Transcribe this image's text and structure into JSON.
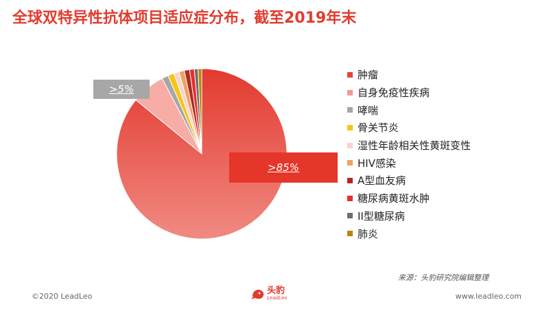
{
  "title": "全球双特异性抗体项目适应症分布，截至2019年末",
  "chart_data": {
    "type": "pie",
    "categories": [
      "肿瘤",
      "自身免疫性疾病",
      "哮喘",
      "骨关节炎",
      "湿性年龄相关性黄斑变性",
      "HIV感染",
      "A型血友病",
      "糖尿病黄斑水肿",
      "II型糖尿病",
      "肺炎"
    ],
    "values": [
      85.9,
      6.4,
      1.2,
      1.2,
      1.0,
      1.0,
      1.0,
      0.9,
      0.7,
      0.7
    ],
    "colors": [
      "#e8453a",
      "#f39a92",
      "#a6a6a6",
      "#f5c518",
      "#f8d3d0",
      "#f0a060",
      "#b02a22",
      "#e82d2d",
      "#6e6e6e",
      "#b8860b"
    ],
    "gradients": [
      [
        "#e33a2f",
        "#f08a82"
      ],
      [
        "#f7aca6",
        "#f7aca6"
      ],
      [
        "#a6a6a6",
        "#a6a6a6"
      ],
      [
        "#f5c518",
        "#f5c518"
      ],
      [
        "#f8d3d0",
        "#f8d3d0"
      ],
      [
        "#f0a060",
        "#f0a060"
      ],
      [
        "#b02a22",
        "#b02a22"
      ],
      [
        "#e82d2d",
        "#e82d2d"
      ],
      [
        "#6e6e6e",
        "#6e6e6e"
      ],
      [
        "#b8860b",
        "#b8860b"
      ]
    ],
    "annotations": [
      ">5%",
      ">85%"
    ],
    "legend_position": "right"
  },
  "source": "来源：头豹研究院编辑整理",
  "footer": {
    "copyright": "©2020 LeadLeo",
    "website": "www.leadleo.com",
    "logo_cn": "头豹",
    "logo_en": "LeadLeo"
  }
}
